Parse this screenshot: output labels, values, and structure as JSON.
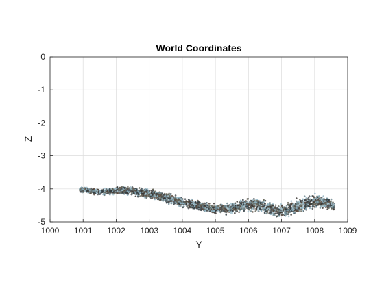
{
  "chart_data": {
    "type": "scatter",
    "title": "World Coordinates",
    "xlabel": "Y",
    "ylabel": "Z",
    "xlim": [
      1000,
      1009
    ],
    "ylim": [
      -5,
      0
    ],
    "x_ticks": [
      1000,
      1001,
      1002,
      1003,
      1004,
      1005,
      1006,
      1007,
      1008,
      1009
    ],
    "y_ticks": [
      0,
      -1,
      -2,
      -3,
      -4,
      -5
    ],
    "x_tick_labels": [
      "1000",
      "1001",
      "1002",
      "1003",
      "1004",
      "1005",
      "1006",
      "1007",
      "1008",
      "1009"
    ],
    "y_tick_labels": [
      "0",
      "-1",
      "-2",
      "-3",
      "-4",
      "-5"
    ],
    "grid": true,
    "legend": "none",
    "series": [
      {
        "profile": [
          [
            1000.9,
            -4.02
          ],
          [
            1001.2,
            -4.06
          ],
          [
            1001.5,
            -4.09
          ],
          [
            1001.8,
            -4.08
          ],
          [
            1002.1,
            -4.05
          ],
          [
            1002.4,
            -4.07
          ],
          [
            1002.7,
            -4.1
          ],
          [
            1003.0,
            -4.15
          ],
          [
            1003.3,
            -4.22
          ],
          [
            1003.6,
            -4.3
          ],
          [
            1003.9,
            -4.38
          ],
          [
            1004.2,
            -4.45
          ],
          [
            1004.5,
            -4.52
          ],
          [
            1004.8,
            -4.58
          ],
          [
            1005.1,
            -4.61
          ],
          [
            1005.4,
            -4.6
          ],
          [
            1005.7,
            -4.53
          ],
          [
            1006.0,
            -4.48
          ],
          [
            1006.3,
            -4.5
          ],
          [
            1006.6,
            -4.58
          ],
          [
            1006.9,
            -4.66
          ],
          [
            1007.2,
            -4.63
          ],
          [
            1007.5,
            -4.52
          ],
          [
            1007.8,
            -4.42
          ],
          [
            1008.1,
            -4.36
          ],
          [
            1008.4,
            -4.45
          ],
          [
            1008.6,
            -4.52
          ]
        ],
        "thickness": [
          0.1,
          0.11,
          0.13,
          0.14,
          0.16,
          0.17,
          0.18,
          0.17,
          0.18,
          0.19,
          0.2,
          0.19,
          0.18,
          0.17,
          0.18,
          0.2,
          0.22,
          0.24,
          0.25,
          0.25,
          0.24,
          0.25,
          0.27,
          0.28,
          0.27,
          0.24,
          0.18
        ],
        "point_count": 2800,
        "colors": [
          "#8fb3c2",
          "#6f8a92",
          "#4e5458",
          "#5a4a3e",
          "#3a3633",
          "#a5c3cf",
          "#6b6b5e",
          "#2f3a3f"
        ]
      }
    ]
  }
}
